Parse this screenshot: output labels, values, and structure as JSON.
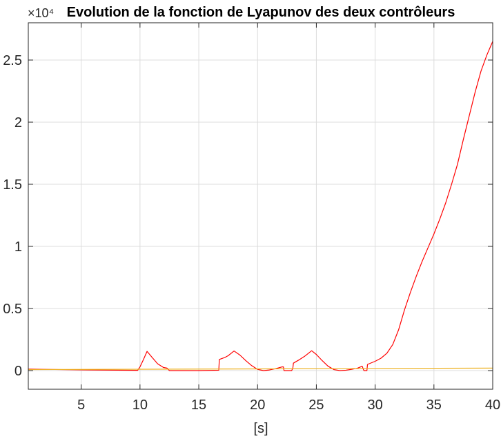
{
  "chart_data": {
    "type": "line",
    "title": "Evolution de la fonction de Lyapunov des deux contrôleurs",
    "xlabel": "[s]",
    "ylabel": "",
    "y_exponent_label": "×10⁴",
    "xlim": [
      0.5,
      40
    ],
    "ylim": [
      -0.15,
      2.8
    ],
    "grid": true,
    "legend": "none",
    "x_ticks": [
      5,
      10,
      15,
      20,
      25,
      30,
      35,
      40
    ],
    "x_tick_labels": [
      "5",
      "10",
      "15",
      "20",
      "25",
      "30",
      "35",
      "40"
    ],
    "y_ticks": [
      0,
      0.5,
      1,
      1.5,
      2,
      2.5
    ],
    "y_tick_labels": [
      "0",
      "0.5",
      "1",
      "1.5",
      "2",
      "2.5"
    ],
    "series": [
      {
        "color": "#ff0000",
        "x": [
          0.5,
          5,
          9.8,
          10.0,
          10.3,
          10.6,
          11.0,
          11.5,
          12.0,
          12.3,
          12.5,
          15,
          16.7,
          16.75,
          17.2,
          17.5,
          18.0,
          18.5,
          19.0,
          19.5,
          20.0,
          20.5,
          21.0,
          21.5,
          22.1,
          22.2,
          22.25,
          22.4,
          22.9,
          23.0,
          23.05,
          23.5,
          24.0,
          24.6,
          25.0,
          25.5,
          26.0,
          26.5,
          27.0,
          27.5,
          28.0,
          28.5,
          28.9,
          29.0,
          29.05,
          29.3,
          29.35,
          30.0,
          30.5,
          31.0,
          31.5,
          32.0,
          32.5,
          33.0,
          33.5,
          34.0,
          34.5,
          35.0,
          35.5,
          36.0,
          36.5,
          37.0,
          37.5,
          38.0,
          38.5,
          39.0,
          39.5,
          40.0
        ],
        "y": [
          0.012,
          0.006,
          0.002,
          0.03,
          0.09,
          0.155,
          0.11,
          0.055,
          0.025,
          0.02,
          0.0,
          0.0,
          0.003,
          0.09,
          0.105,
          0.12,
          0.158,
          0.125,
          0.08,
          0.04,
          0.01,
          0.0,
          0.005,
          0.015,
          0.03,
          0.03,
          0.0,
          0.0,
          0.0,
          0.02,
          0.06,
          0.085,
          0.115,
          0.16,
          0.13,
          0.08,
          0.035,
          0.008,
          0.0,
          0.003,
          0.01,
          0.02,
          0.035,
          0.01,
          0.0,
          0.0,
          0.05,
          0.075,
          0.1,
          0.14,
          0.21,
          0.33,
          0.49,
          0.63,
          0.76,
          0.88,
          0.99,
          1.1,
          1.22,
          1.35,
          1.5,
          1.66,
          1.86,
          2.05,
          2.24,
          2.41,
          2.54,
          2.65
        ]
      },
      {
        "color": "#edb120",
        "x": [
          0.5,
          40
        ],
        "y": [
          0.008,
          0.02
        ]
      }
    ]
  }
}
